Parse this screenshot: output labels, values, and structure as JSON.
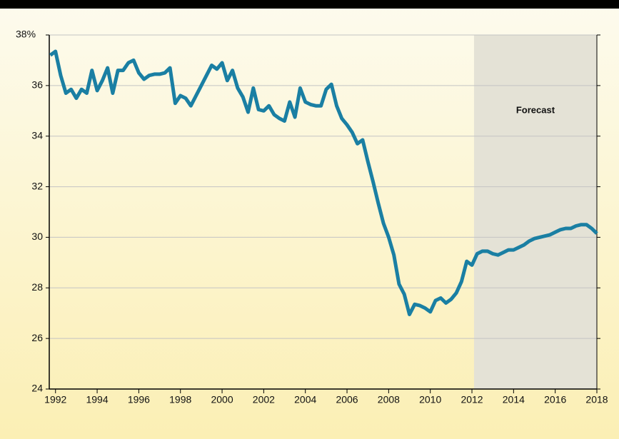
{
  "chart_data": {
    "type": "line",
    "annotation": "Forecast",
    "forecast_start": 2012.1,
    "color": "#1a7fa3",
    "x": [
      1991.75,
      1992,
      1992.25,
      1992.5,
      1992.75,
      1993,
      1993.25,
      1993.5,
      1993.75,
      1994,
      1994.25,
      1994.5,
      1994.75,
      1995,
      1995.25,
      1995.5,
      1995.75,
      1996,
      1996.25,
      1996.5,
      1996.75,
      1997,
      1997.25,
      1997.5,
      1997.75,
      1998,
      1998.25,
      1998.5,
      1998.75,
      1999,
      1999.25,
      1999.5,
      1999.75,
      2000,
      2000.25,
      2000.5,
      2000.75,
      2001,
      2001.25,
      2001.5,
      2001.75,
      2002,
      2002.25,
      2002.5,
      2002.75,
      2003,
      2003.25,
      2003.5,
      2003.75,
      2004,
      2004.25,
      2004.5,
      2004.75,
      2005,
      2005.25,
      2005.5,
      2005.75,
      2006,
      2006.25,
      2006.5,
      2006.75,
      2007,
      2007.25,
      2007.5,
      2007.75,
      2008,
      2008.25,
      2008.5,
      2008.75,
      2009,
      2009.25,
      2009.5,
      2009.75,
      2010,
      2010.25,
      2010.5,
      2010.75,
      2011,
      2011.25,
      2011.5,
      2011.75,
      2012,
      2012.25,
      2012.5,
      2012.75,
      2013,
      2013.25,
      2013.5,
      2013.75,
      2014,
      2014.25,
      2014.5,
      2014.75,
      2015,
      2015.25,
      2015.5,
      2015.75,
      2016,
      2016.25,
      2016.5,
      2016.75,
      2017,
      2017.25,
      2017.5,
      2017.75,
      2018
    ],
    "values": [
      37.2,
      37.35,
      36.4,
      35.7,
      35.85,
      35.5,
      35.85,
      35.7,
      36.6,
      35.8,
      36.2,
      36.7,
      35.7,
      36.6,
      36.6,
      36.9,
      37.0,
      36.5,
      36.25,
      36.4,
      36.45,
      36.45,
      36.5,
      36.7,
      35.3,
      35.6,
      35.5,
      35.2,
      35.6,
      36.0,
      36.4,
      36.8,
      36.65,
      36.9,
      36.2,
      36.6,
      35.9,
      35.55,
      34.95,
      35.9,
      35.05,
      35.0,
      35.2,
      34.85,
      34.7,
      34.6,
      35.35,
      34.75,
      35.9,
      35.35,
      35.25,
      35.2,
      35.2,
      35.85,
      36.05,
      35.2,
      34.7,
      34.45,
      34.15,
      33.7,
      33.85,
      33.0,
      32.2,
      31.35,
      30.55,
      30.0,
      29.3,
      28.15,
      27.75,
      26.95,
      27.35,
      27.3,
      27.2,
      27.05,
      27.5,
      27.6,
      27.4,
      27.55,
      27.8,
      28.25,
      29.05,
      28.9,
      29.35,
      29.45,
      29.45,
      29.35,
      29.3,
      29.4,
      29.5,
      29.5,
      29.6,
      29.7,
      29.85,
      29.95,
      30.0,
      30.05,
      30.1,
      30.2,
      30.3,
      30.35,
      30.35,
      30.45,
      30.5,
      30.5,
      30.35,
      30.15
    ],
    "xlim": [
      1991.7,
      2018
    ],
    "xticks": [
      1992,
      1994,
      1996,
      1998,
      2000,
      2002,
      2004,
      2006,
      2008,
      2010,
      2012,
      2014,
      2016,
      2018
    ],
    "ylim": [
      24,
      38
    ],
    "yticks": [
      24,
      26,
      28,
      30,
      32,
      34,
      36,
      {
        "value": 38,
        "label": "38%"
      }
    ],
    "grid": true
  }
}
